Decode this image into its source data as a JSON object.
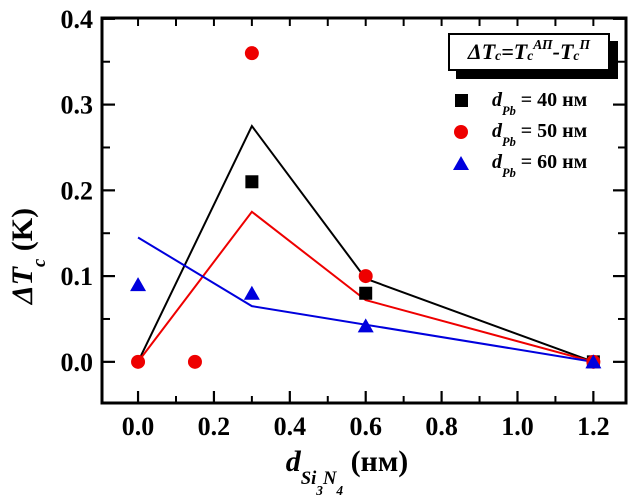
{
  "chart_data": {
    "type": "scatter",
    "title": "",
    "xlabel": "d_Si3N4 (нм)",
    "ylabel": "ΔT_c (K)",
    "annotation": "ΔT_c = T_c^АП - T_c^П",
    "grid": false,
    "legend_position": "top-right-inside",
    "x_axis": {
      "range": [
        -0.095,
        1.286
      ],
      "major_ticks": [
        0.0,
        0.2,
        0.4,
        0.6,
        0.8,
        1.0,
        1.2
      ],
      "minor_ticks": [
        0.1,
        0.3,
        0.5,
        0.7,
        0.9,
        1.1
      ],
      "tick_labels": [
        "0.0",
        "0.2",
        "0.4",
        "0.6",
        "0.8",
        "1.0",
        "1.2"
      ]
    },
    "y_axis": {
      "range": [
        -0.048,
        0.401
      ],
      "major_ticks": [
        0.0,
        0.1,
        0.2,
        0.3,
        0.4
      ],
      "minor_ticks": [
        0.05,
        0.15,
        0.25,
        0.35
      ],
      "tick_labels": [
        "0.0",
        "0.1",
        "0.2",
        "0.3",
        "0.4"
      ]
    },
    "series": [
      {
        "name": "d_Pb = 40 нм",
        "marker": "square",
        "color": "#000000",
        "points": [
          [
            0.3,
            0.21
          ],
          [
            0.6,
            0.08
          ],
          [
            1.2,
            0.0
          ]
        ],
        "trend_line": [
          [
            0.0,
            0.0
          ],
          [
            0.3,
            0.275
          ],
          [
            0.6,
            0.097
          ],
          [
            1.2,
            0.0
          ]
        ]
      },
      {
        "name": "d_Pb = 50 нм",
        "marker": "circle",
        "color": "#ee0000",
        "points": [
          [
            0.0,
            0.0
          ],
          [
            0.15,
            0.0
          ],
          [
            0.3,
            0.36
          ],
          [
            0.6,
            0.1
          ],
          [
            1.2,
            0.0
          ]
        ],
        "trend_line": [
          [
            0.0,
            0.0
          ],
          [
            0.3,
            0.175
          ],
          [
            0.6,
            0.072
          ],
          [
            1.2,
            0.0
          ]
        ]
      },
      {
        "name": "d_Pb = 60 нм",
        "marker": "triangle",
        "color": "#0000dd",
        "points": [
          [
            0.0,
            0.09
          ],
          [
            0.3,
            0.08
          ],
          [
            0.6,
            0.042
          ],
          [
            1.2,
            0.0
          ]
        ],
        "trend_line": [
          [
            0.0,
            0.145
          ],
          [
            0.3,
            0.065
          ],
          [
            1.2,
            0.0
          ]
        ]
      }
    ]
  },
  "formula": {
    "lhs_var": "ΔT",
    "lhs_sub": "c",
    "eq": "=",
    "t1_var": "T",
    "t1_sub": "c",
    "t1_sup": "АП",
    "minus": "-",
    "t2_var": "T",
    "t2_sub": "c",
    "t2_sup": "П"
  },
  "legend": {
    "entries": [
      {
        "symbol": "square",
        "color": "#000000",
        "var": "d",
        "var_sub": "Pb",
        "value": "= 40 нм"
      },
      {
        "symbol": "circle",
        "color": "#ee0000",
        "var": "d",
        "var_sub": "Pb",
        "value": "= 50 нм"
      },
      {
        "symbol": "triangle",
        "color": "#0000dd",
        "var": "d",
        "var_sub": "Pb",
        "value": "= 60 нм"
      }
    ]
  },
  "axis_titles": {
    "y": {
      "var": "ΔT",
      "sub": "c",
      "unit": " (K)"
    },
    "x": {
      "var": "d",
      "sub_1": "Si",
      "sub_1_idx": "3",
      "sub_2": "N",
      "sub_2_idx": "4",
      "unit": " (нм)"
    }
  }
}
